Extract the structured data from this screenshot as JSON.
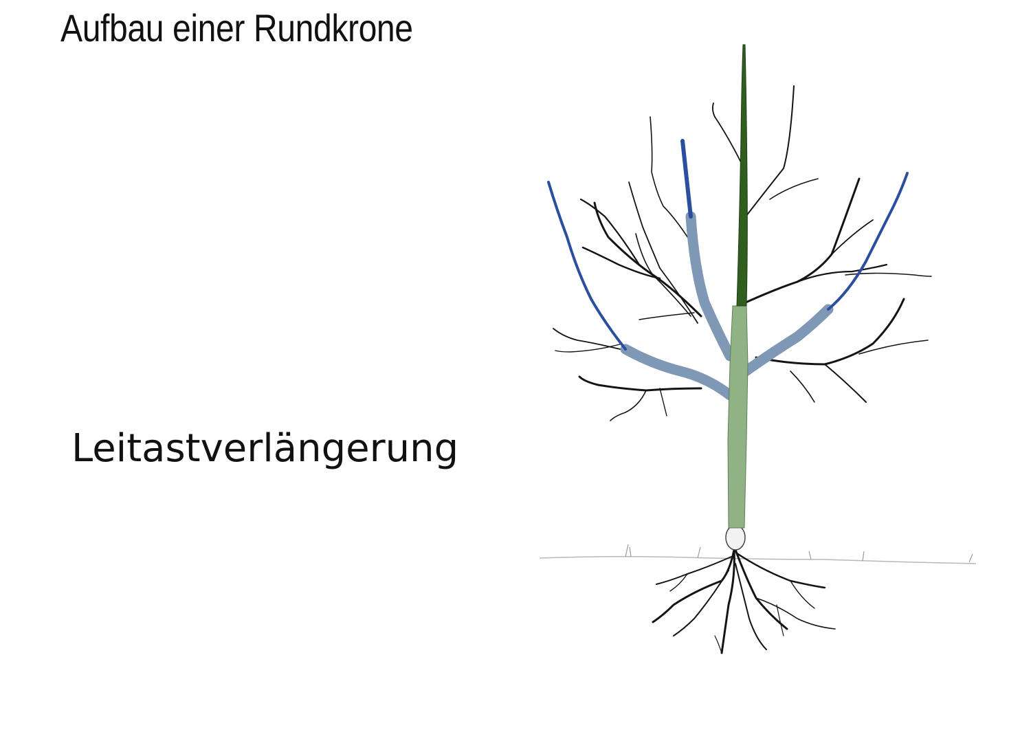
{
  "title": "Aufbau einer Rundkrone",
  "label": "Leitastverlängerung",
  "colors": {
    "leader_extension": "#2b4f9e",
    "leader_branch": "#7f98b6",
    "central_leader_top": "#2f5e1f",
    "trunk": "#8fb385",
    "wood": "#141414"
  }
}
